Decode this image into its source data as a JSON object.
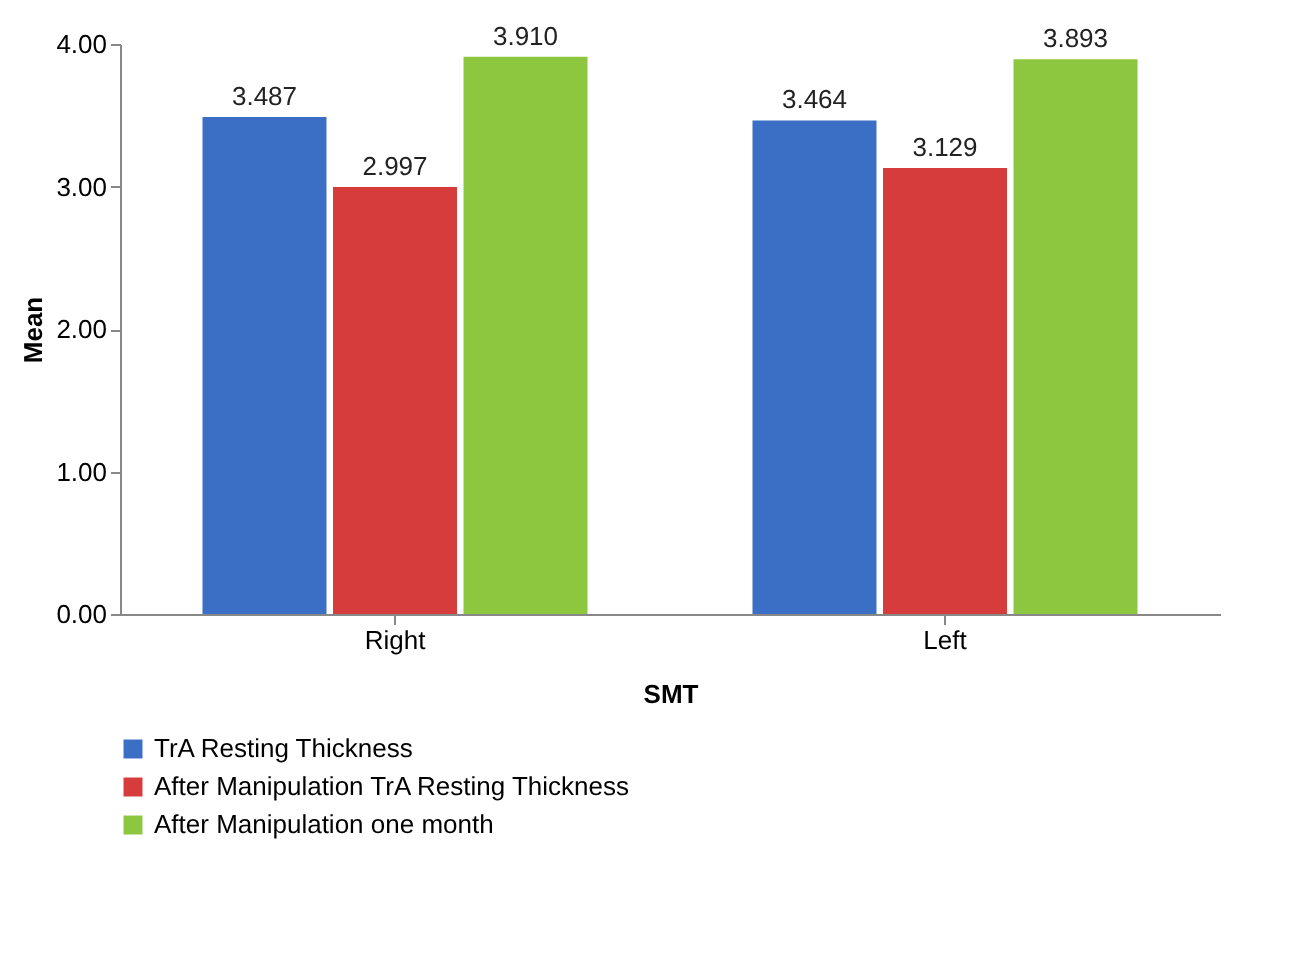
{
  "chart_data": {
    "type": "bar",
    "xlabel": "SMT",
    "ylabel": "Mean",
    "categories": [
      "Right",
      "Left"
    ],
    "series": [
      {
        "name": "TrA Resting Thickness",
        "color": "#3b6fc6",
        "values": [
          3.487,
          3.464
        ],
        "value_labels": [
          "3.487",
          "3.464"
        ]
      },
      {
        "name": "After Manipulation TrA Resting Thickness",
        "color": "#d63c3c",
        "values": [
          2.997,
          3.129
        ],
        "value_labels": [
          "2.997",
          "3.129"
        ]
      },
      {
        "name": "After Manipulation one month",
        "color": "#8dc63f",
        "values": [
          3.91,
          3.893
        ],
        "value_labels": [
          "3.910",
          "3.893"
        ]
      }
    ],
    "ylim": [
      0,
      4
    ],
    "yticks": [
      {
        "value": 0,
        "label": "0.00"
      },
      {
        "value": 1,
        "label": "1.00"
      },
      {
        "value": 2,
        "label": "2.00"
      },
      {
        "value": 3,
        "label": "3.00"
      },
      {
        "value": 4,
        "label": "4.00"
      }
    ],
    "grid": false,
    "legend": "bottom"
  }
}
